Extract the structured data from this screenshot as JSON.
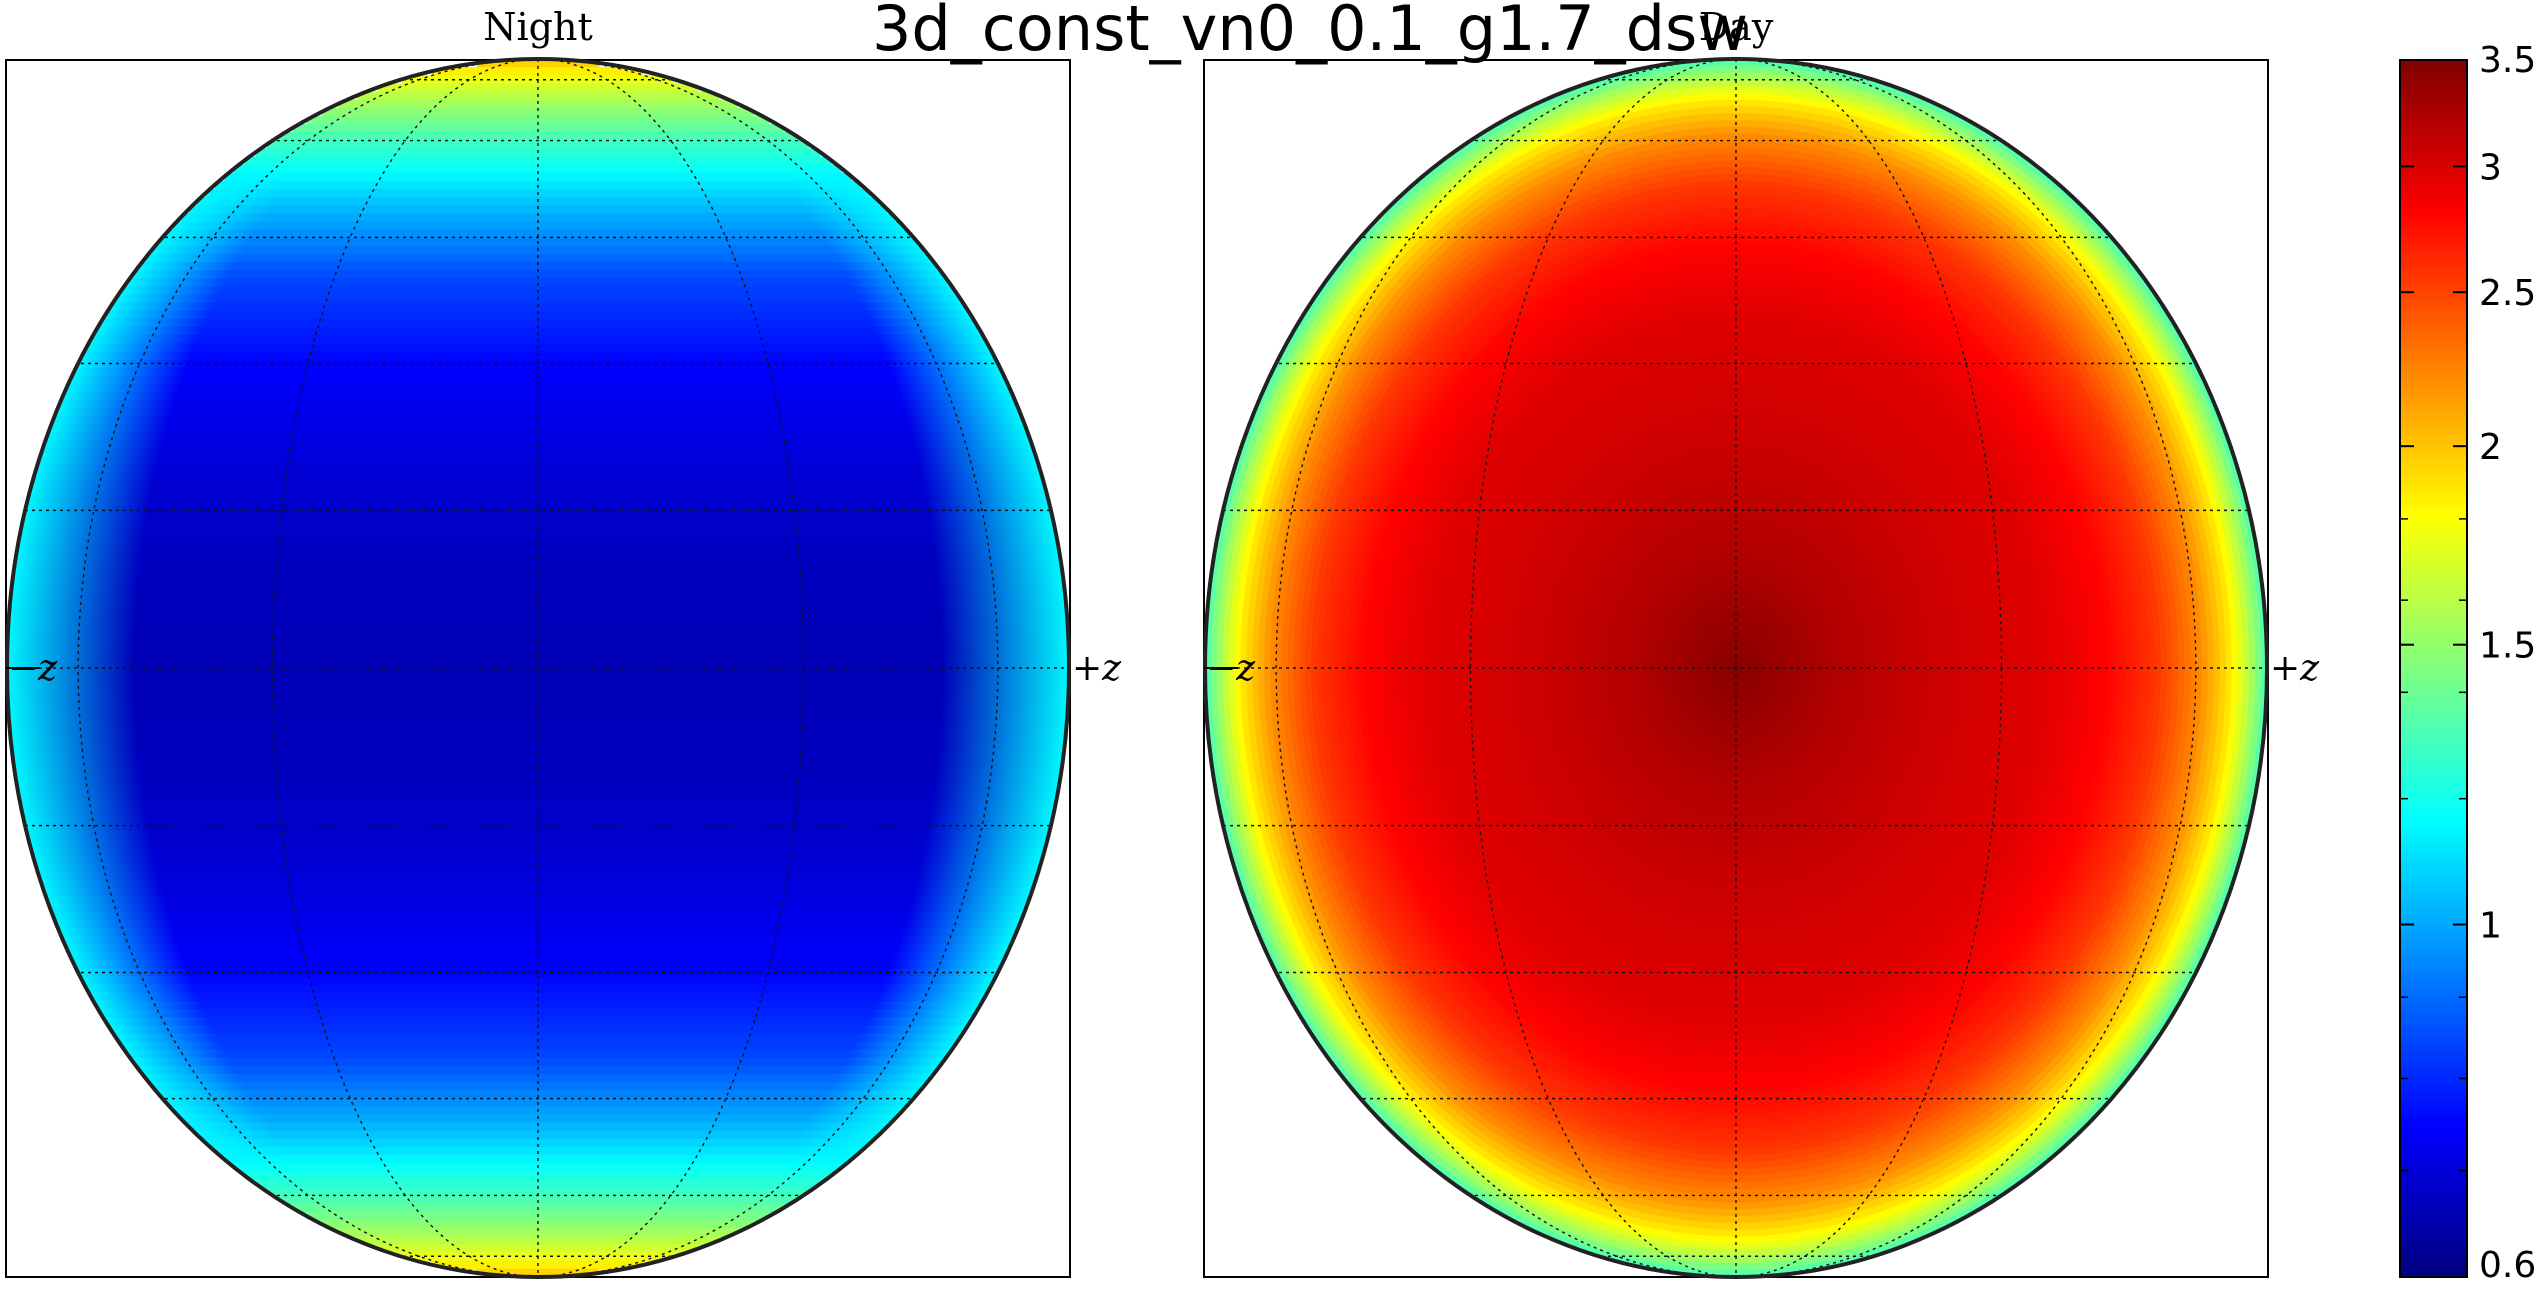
{
  "chart_data": {
    "type": "heatmap",
    "title": "3d_const_vn0_0.1_g1.7_dsw",
    "panels": [
      {
        "name": "Night",
        "side_labels": [
          "−z",
          "+z"
        ],
        "latitude_profile": {
          "lat_deg": [
            -90,
            -80,
            -70,
            -60,
            -50,
            -40,
            -30,
            -20,
            -10,
            0,
            10,
            20,
            30,
            40,
            50,
            60,
            70,
            80,
            90
          ],
          "value": [
            2.05,
            1.9,
            1.6,
            1.3,
            1.05,
            0.85,
            0.75,
            0.7,
            0.67,
            0.66,
            0.67,
            0.7,
            0.75,
            0.85,
            1.05,
            1.3,
            1.6,
            1.9,
            2.05
          ]
        },
        "limb_value": 1.15
      },
      {
        "name": "Day",
        "side_labels": [
          "−z",
          "+z"
        ],
        "radial_profile": {
          "angular_distance": [
            0.0,
            0.2,
            0.4,
            0.6,
            0.7,
            0.8,
            0.88,
            0.94,
            1.0
          ],
          "value": [
            3.45,
            3.2,
            3.05,
            2.95,
            2.8,
            2.55,
            2.2,
            1.85,
            1.35
          ]
        }
      }
    ],
    "colorbar": {
      "colormap": "jet",
      "scale": "log",
      "range": [
        0.6,
        3.5
      ],
      "tick_labels": [
        {
          "value": 1,
          "label": "1"
        },
        {
          "value": 1.5,
          "label": "1.5"
        },
        {
          "value": 2,
          "label": "2"
        },
        {
          "value": 2.5,
          "label": "2.5"
        },
        {
          "value": 3,
          "label": "3"
        },
        {
          "value": 3.5,
          "label": "3.5"
        }
      ],
      "end_labels": [
        {
          "value": 0.6,
          "label": "0.6"
        }
      ],
      "minor_ticks": [
        0.7,
        0.8,
        0.9,
        1.2,
        1.4,
        1.6,
        1.8
      ]
    },
    "grid": true
  }
}
